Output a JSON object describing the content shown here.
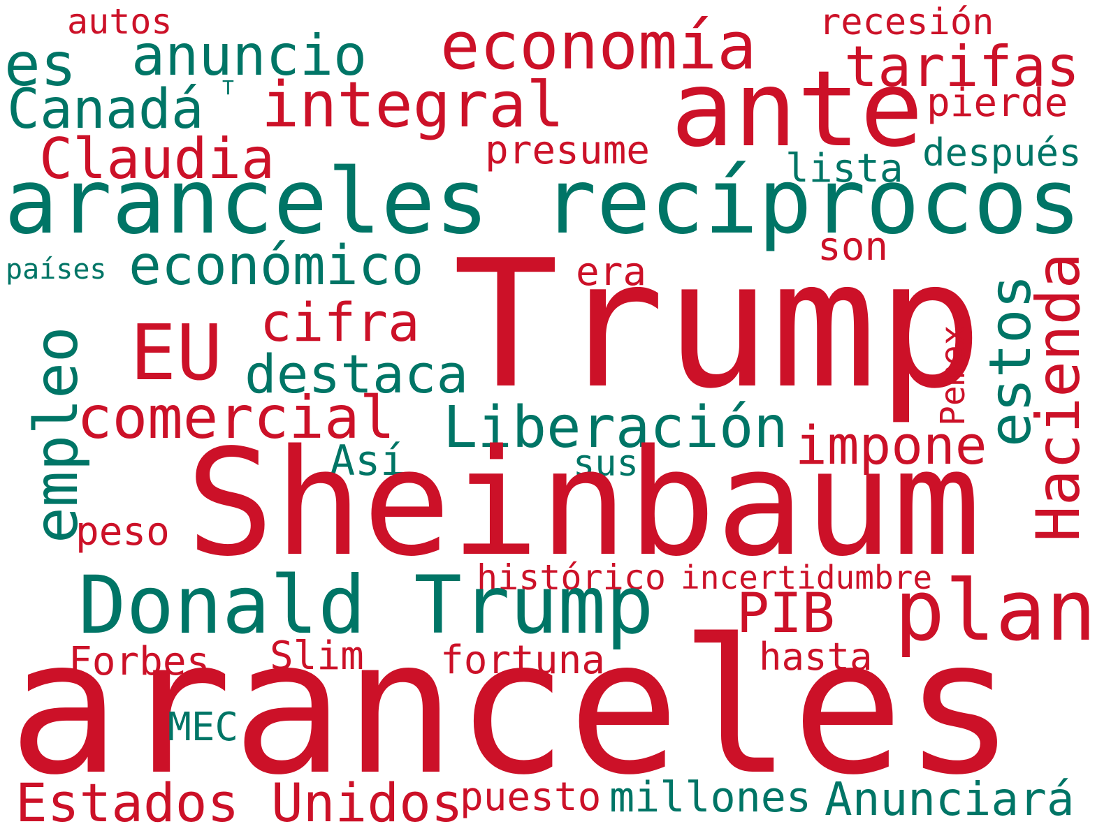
{
  "colors": {
    "red": "#cc1128",
    "teal": "#007566",
    "background": "#ffffff"
  },
  "words": {
    "autos": "autos",
    "recesion": "recesión",
    "es": "es",
    "anuncio": "anuncio",
    "economia": "economía",
    "tarifas": "tarifas",
    "canada": "Canadá",
    "t_small": "T",
    "integral": "integral",
    "ante": "ante",
    "pierde": "pierde",
    "claudia": "Claudia",
    "presume": "presume",
    "despues": "después",
    "lista": "lista",
    "aranceles_reciprocos": "aranceles recíprocos",
    "paises": "países",
    "economico": "económico",
    "son": "son",
    "era": "era",
    "trump": "Trump",
    "empleo": "empleo",
    "eu": "EU",
    "cifra": "cifra",
    "destaca": "destaca",
    "estos": "estos",
    "hacienda": "Hacienda",
    "pemex": "Pemex",
    "comercial": "comercial",
    "liberacion": "Liberación",
    "impone": "impone",
    "asi": "Así",
    "sus": "sus",
    "sheinbaum": "Sheinbaum",
    "peso": "peso",
    "historico": "histórico",
    "incertidumbre": "incertidumbre",
    "donald_trump": "Donald Trump",
    "pib": "PIB",
    "plan": "plan",
    "forbes": "Forbes",
    "slim": "Slim",
    "fortuna": "fortuna",
    "hasta": "hasta",
    "aranceles": "aranceles",
    "mec": "MEC",
    "estados_unidos": "Estados Unidos",
    "puesto": "puesto",
    "millones": "millones",
    "anunciara": "Anunciará"
  }
}
